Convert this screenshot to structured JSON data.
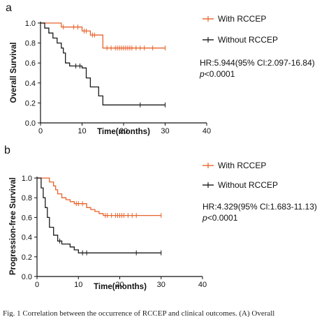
{
  "chart_data": [
    {
      "panel": "a",
      "type": "line",
      "xlabel": "Time(months)",
      "ylabel": "Overall Survival",
      "xlim": [
        0,
        40
      ],
      "ylim": [
        0,
        1.0
      ],
      "xticks": [
        "0",
        "10",
        "20",
        "30",
        "40"
      ],
      "yticks": [
        "0.0",
        "0.2",
        "0.4",
        "0.6",
        "0.8",
        "1.0"
      ],
      "grid": false,
      "legend_position": "top-right",
      "hr_text": "HR:5.944(95% Cl:2.097-16.84)",
      "p_prefix": "p",
      "p_rest": "<0.0001",
      "series": [
        {
          "name": "With RCCEP",
          "color": "#e8622a",
          "steps": [
            [
              0,
              1.0
            ],
            [
              5,
              1.0
            ],
            [
              5,
              0.96
            ],
            [
              10,
              0.96
            ],
            [
              10,
              0.92
            ],
            [
              12,
              0.92
            ],
            [
              12,
              0.88
            ],
            [
              15,
              0.88
            ],
            [
              15,
              0.75
            ],
            [
              30,
              0.75
            ]
          ],
          "censors": [
            [
              5.5,
              0.96
            ],
            [
              8,
              0.96
            ],
            [
              9,
              0.96
            ],
            [
              10.5,
              0.92
            ],
            [
              11,
              0.92
            ],
            [
              12.5,
              0.88
            ],
            [
              13,
              0.88
            ],
            [
              16,
              0.75
            ],
            [
              17,
              0.75
            ],
            [
              18,
              0.75
            ],
            [
              18.5,
              0.75
            ],
            [
              19,
              0.75
            ],
            [
              19.5,
              0.75
            ],
            [
              20,
              0.75
            ],
            [
              20.5,
              0.75
            ],
            [
              21,
              0.75
            ],
            [
              21.5,
              0.75
            ],
            [
              22,
              0.75
            ],
            [
              23,
              0.75
            ],
            [
              24,
              0.75
            ],
            [
              25,
              0.75
            ],
            [
              27,
              0.75
            ],
            [
              30,
              0.75
            ]
          ]
        },
        {
          "name": "Without RCCEP",
          "color": "#1a1a1a",
          "steps": [
            [
              0,
              1.0
            ],
            [
              1,
              1.0
            ],
            [
              1,
              0.95
            ],
            [
              2,
              0.95
            ],
            [
              2,
              0.9
            ],
            [
              3,
              0.9
            ],
            [
              3,
              0.85
            ],
            [
              4,
              0.85
            ],
            [
              4,
              0.8
            ],
            [
              5,
              0.8
            ],
            [
              5,
              0.75
            ],
            [
              5.5,
              0.75
            ],
            [
              5.5,
              0.7
            ],
            [
              6,
              0.7
            ],
            [
              6,
              0.6
            ],
            [
              7,
              0.6
            ],
            [
              7,
              0.57
            ],
            [
              10,
              0.57
            ],
            [
              10,
              0.55
            ],
            [
              11,
              0.55
            ],
            [
              11,
              0.45
            ],
            [
              12,
              0.45
            ],
            [
              12,
              0.36
            ],
            [
              14,
              0.36
            ],
            [
              14,
              0.27
            ],
            [
              15,
              0.27
            ],
            [
              15,
              0.18
            ],
            [
              30,
              0.18
            ]
          ],
          "censors": [
            [
              8.5,
              0.57
            ],
            [
              9.5,
              0.57
            ],
            [
              24,
              0.18
            ],
            [
              30,
              0.18
            ]
          ]
        }
      ]
    },
    {
      "panel": "b",
      "type": "line",
      "xlabel": "Time(months)",
      "ylabel": "Progression-free Survival",
      "xlim": [
        0,
        40
      ],
      "ylim": [
        0,
        1.0
      ],
      "xticks": [
        "0",
        "10",
        "20",
        "30",
        "40"
      ],
      "yticks": [
        "0.0",
        "0.2",
        "0.4",
        "0.6",
        "0.8",
        "1.0"
      ],
      "grid": false,
      "legend_position": "top-right",
      "hr_text": "HR:4.329(95% Cl:1.683-11.13)",
      "p_prefix": "p",
      "p_rest": "<0.0001",
      "series": [
        {
          "name": "With RCCEP",
          "color": "#e8622a",
          "steps": [
            [
              0,
              1.0
            ],
            [
              3,
              1.0
            ],
            [
              3,
              0.96
            ],
            [
              4,
              0.96
            ],
            [
              4,
              0.92
            ],
            [
              4.5,
              0.92
            ],
            [
              4.5,
              0.88
            ],
            [
              5,
              0.88
            ],
            [
              5,
              0.84
            ],
            [
              6,
              0.84
            ],
            [
              6,
              0.8
            ],
            [
              7,
              0.8
            ],
            [
              7,
              0.78
            ],
            [
              8,
              0.78
            ],
            [
              8,
              0.76
            ],
            [
              9,
              0.76
            ],
            [
              9,
              0.74
            ],
            [
              12,
              0.74
            ],
            [
              12,
              0.7
            ],
            [
              13,
              0.7
            ],
            [
              13,
              0.68
            ],
            [
              14,
              0.68
            ],
            [
              14,
              0.66
            ],
            [
              15,
              0.66
            ],
            [
              15,
              0.64
            ],
            [
              16,
              0.64
            ],
            [
              16,
              0.62
            ],
            [
              30,
              0.62
            ]
          ],
          "censors": [
            [
              9.5,
              0.74
            ],
            [
              10,
              0.74
            ],
            [
              11,
              0.74
            ],
            [
              16.5,
              0.62
            ],
            [
              17,
              0.62
            ],
            [
              18,
              0.62
            ],
            [
              19,
              0.62
            ],
            [
              19.5,
              0.62
            ],
            [
              20,
              0.62
            ],
            [
              20.5,
              0.62
            ],
            [
              21,
              0.62
            ],
            [
              22,
              0.62
            ],
            [
              23,
              0.62
            ],
            [
              24,
              0.62
            ],
            [
              30,
              0.62
            ]
          ]
        },
        {
          "name": "Without RCCEP",
          "color": "#1a1a1a",
          "steps": [
            [
              0,
              1.0
            ],
            [
              1,
              1.0
            ],
            [
              1,
              0.9
            ],
            [
              1.5,
              0.9
            ],
            [
              1.5,
              0.8
            ],
            [
              2,
              0.8
            ],
            [
              2,
              0.7
            ],
            [
              2.5,
              0.7
            ],
            [
              2.5,
              0.6
            ],
            [
              3,
              0.6
            ],
            [
              3,
              0.5
            ],
            [
              4,
              0.5
            ],
            [
              4,
              0.42
            ],
            [
              5,
              0.42
            ],
            [
              5,
              0.36
            ],
            [
              6,
              0.36
            ],
            [
              6,
              0.33
            ],
            [
              8,
              0.33
            ],
            [
              8,
              0.3
            ],
            [
              9,
              0.3
            ],
            [
              9,
              0.27
            ],
            [
              10,
              0.27
            ],
            [
              10,
              0.24
            ],
            [
              30,
              0.24
            ]
          ],
          "censors": [
            [
              5.5,
              0.36
            ],
            [
              11,
              0.24
            ],
            [
              12,
              0.24
            ],
            [
              24,
              0.24
            ],
            [
              30,
              0.24
            ]
          ]
        }
      ]
    }
  ],
  "caption": "Fig. 1   Correlation between the occurrence of RCCEP and clinical outcomes. (A) Overall"
}
